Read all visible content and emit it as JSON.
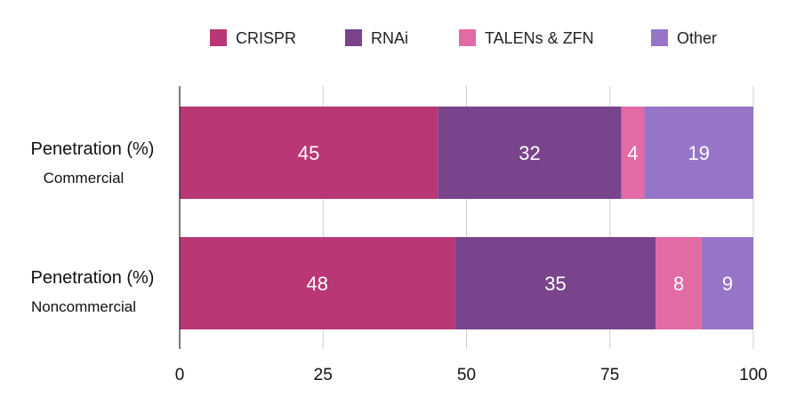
{
  "chart_data": {
    "type": "bar",
    "orientation": "horizontal",
    "stacked": true,
    "categories": [
      {
        "main": "Penetration (%)",
        "sub": "Commercial"
      },
      {
        "main": "Penetration  (%)",
        "sub": "Noncommercial"
      }
    ],
    "series": [
      {
        "name": "CRISPR",
        "color": "#BA3775",
        "values": [
          45,
          48
        ]
      },
      {
        "name": "RNAi",
        "color": "#7A448C",
        "values": [
          32,
          35
        ]
      },
      {
        "name": "TALENs & ZFN",
        "color": "#E26AA5",
        "values": [
          4,
          8
        ]
      },
      {
        "name": "Other",
        "color": "#9675C8",
        "values": [
          19,
          9
        ]
      }
    ],
    "xlim": [
      0,
      100
    ],
    "xticks": [
      "0",
      "25",
      "50",
      "75",
      "100"
    ],
    "grid": true,
    "legend_position": "top"
  }
}
